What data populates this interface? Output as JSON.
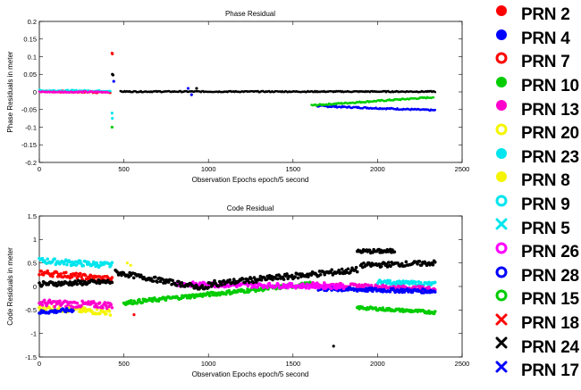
{
  "chart_data": [
    {
      "type": "scatter",
      "title": "Phase Residual",
      "xlabel": "Observation Epochs epoch/5 second",
      "ylabel": "Phase Residuals in meter",
      "xlim": [
        0,
        2500
      ],
      "ylim": [
        -0.2,
        0.2
      ],
      "xticks": [
        "0",
        "500",
        "1000",
        "1500",
        "2000",
        "2500"
      ],
      "yticks": [
        "0.2",
        "0.15",
        "0.1",
        "0.05",
        "0",
        "-0.05",
        "-0.1",
        "-0.15",
        "-0.2"
      ],
      "grid": false,
      "series": [
        {
          "name": "PRN 2",
          "color": "#ff0000",
          "segments": [
            {
              "x0": 0,
              "x1": 420,
              "y0": 0.002,
              "y1": -0.001,
              "jitter": 0.003
            }
          ],
          "points": [
            [
              430,
              0.11
            ],
            [
              432,
              0.108
            ]
          ]
        },
        {
          "name": "PRN 4",
          "color": "#0000ff",
          "segments": [
            {
              "x0": 1640,
              "x1": 2340,
              "y0": -0.04,
              "y1": -0.052,
              "jitter": 0.002
            }
          ],
          "points": [
            [
              880,
              0.01
            ],
            [
              900,
              -0.008
            ],
            [
              440,
              0.03
            ]
          ]
        },
        {
          "name": "PRN 10",
          "color": "#00cc00",
          "segments": [
            {
              "x0": 1610,
              "x1": 2330,
              "y0": -0.038,
              "y1": -0.015,
              "jitter": 0.002
            }
          ],
          "points": [
            [
              430,
              -0.1
            ]
          ]
        },
        {
          "name": "PRN 23",
          "color": "#00e5ee",
          "segments": [
            {
              "x0": 0,
              "x1": 420,
              "y0": 0.004,
              "y1": 0.003,
              "jitter": 0.002
            }
          ],
          "points": [
            [
              430,
              -0.06
            ],
            [
              432,
              -0.075
            ]
          ]
        },
        {
          "name": "PRN 13",
          "color": "#ff00cc",
          "segments": [
            {
              "x0": 0,
              "x1": 410,
              "y0": 0.0,
              "y1": 0.0,
              "jitter": 0.002
            }
          ],
          "points": []
        },
        {
          "name": "PRN 24",
          "color": "#000000",
          "segments": [
            {
              "x0": 480,
              "x1": 2340,
              "y0": 0.001,
              "y1": 0.001,
              "jitter": 0.0015
            }
          ],
          "points": [
            [
              432,
              0.05
            ],
            [
              436,
              0.048
            ],
            [
              930,
              0.01
            ]
          ]
        }
      ]
    },
    {
      "type": "scatter",
      "title": "Code Residual",
      "xlabel": "Observation Epochs epoch/5 second",
      "ylabel": "Code Residuals in meter",
      "xlim": [
        0,
        2500
      ],
      "ylim": [
        -1.5,
        1.5
      ],
      "xticks": [
        "0",
        "500",
        "1000",
        "1500",
        "2000",
        "2500"
      ],
      "yticks": [
        "1.5",
        "1",
        "0.5",
        "0",
        "-0.5",
        "-1",
        "-1.5"
      ],
      "grid": false,
      "series": [
        {
          "name": "PRN 23",
          "color": "#00e5ee",
          "segments": [
            {
              "x0": 0,
              "x1": 430,
              "y0": 0.55,
              "y1": 0.45,
              "jitter": 0.06
            },
            {
              "x0": 2000,
              "x1": 2340,
              "y0": 0.1,
              "y1": 0.05,
              "jitter": 0.04
            }
          ],
          "points": []
        },
        {
          "name": "PRN 2",
          "color": "#ff0000",
          "segments": [
            {
              "x0": 0,
              "x1": 430,
              "y0": 0.3,
              "y1": 0.15,
              "jitter": 0.06
            }
          ],
          "points": [
            [
              560,
              -0.6
            ]
          ]
        },
        {
          "name": "PRN 20",
          "color": "#f5f500",
          "segments": [
            {
              "x0": 0,
              "x1": 420,
              "y0": -0.45,
              "y1": -0.55,
              "jitter": 0.06
            }
          ],
          "points": [
            [
              520,
              0.5
            ],
            [
              540,
              0.45
            ]
          ]
        },
        {
          "name": "PRN 13",
          "color": "#ff00cc",
          "segments": [
            {
              "x0": 0,
              "x1": 430,
              "y0": -0.35,
              "y1": -0.4,
              "jitter": 0.07
            },
            {
              "x0": 1600,
              "x1": 2340,
              "y0": 0.05,
              "y1": -0.05,
              "jitter": 0.04
            }
          ],
          "points": []
        },
        {
          "name": "PRN 4",
          "color": "#0000ff",
          "segments": [
            {
              "x0": 0,
              "x1": 200,
              "y0": -0.55,
              "y1": -0.5,
              "jitter": 0.04
            },
            {
              "x0": 1650,
              "x1": 2340,
              "y0": -0.05,
              "y1": -0.1,
              "jitter": 0.04
            }
          ],
          "points": []
        },
        {
          "name": "PRN 10",
          "color": "#00cc00",
          "segments": [
            {
              "x0": 500,
              "x1": 1600,
              "y0": -0.35,
              "y1": 0.05,
              "jitter": 0.04
            },
            {
              "x0": 1880,
              "x1": 2340,
              "y0": -0.45,
              "y1": -0.55,
              "jitter": 0.03
            }
          ],
          "points": []
        },
        {
          "name": "PRN 26",
          "color": "#ff00ff",
          "segments": [
            {
              "x0": 800,
              "x1": 1800,
              "y0": 0.05,
              "y1": 0.0,
              "jitter": 0.05
            }
          ],
          "points": []
        },
        {
          "name": "PRN 24",
          "color": "#000000",
          "segments": [
            {
              "x0": 0,
              "x1": 430,
              "y0": 0.05,
              "y1": 0.1,
              "jitter": 0.05
            },
            {
              "x0": 450,
              "x1": 1000,
              "y0": 0.3,
              "y1": -0.05,
              "jitter": 0.05
            },
            {
              "x0": 1000,
              "x1": 1880,
              "y0": 0.05,
              "y1": 0.35,
              "jitter": 0.06
            },
            {
              "x0": 1900,
              "x1": 2340,
              "y0": 0.45,
              "y1": 0.5,
              "jitter": 0.05
            },
            {
              "x0": 1880,
              "x1": 2100,
              "y0": 0.75,
              "y1": 0.75,
              "jitter": 0.04
            }
          ],
          "points": [
            [
              1740,
              -1.27
            ]
          ]
        }
      ]
    }
  ],
  "legend": [
    {
      "label": "PRN 2",
      "color": "#ff0000",
      "marker": "dot"
    },
    {
      "label": "PRN 4",
      "color": "#0000ff",
      "marker": "dot"
    },
    {
      "label": "PRN 7",
      "color": "#ff0000",
      "marker": "ring"
    },
    {
      "label": "PRN 10",
      "color": "#00cc00",
      "marker": "dot"
    },
    {
      "label": "PRN 13",
      "color": "#ff00cc",
      "marker": "dot"
    },
    {
      "label": "PRN 20",
      "color": "#f5f500",
      "marker": "ring"
    },
    {
      "label": "PRN 23",
      "color": "#00e5ee",
      "marker": "dot"
    },
    {
      "label": "PRN 8",
      "color": "#f5f500",
      "marker": "dot"
    },
    {
      "label": "PRN 9",
      "color": "#00e5ee",
      "marker": "ring"
    },
    {
      "label": "PRN 5",
      "color": "#00e5ee",
      "marker": "cross"
    },
    {
      "label": "PRN 26",
      "color": "#ff00ff",
      "marker": "ring"
    },
    {
      "label": "PRN 28",
      "color": "#0000ff",
      "marker": "ring"
    },
    {
      "label": "PRN 15",
      "color": "#00cc00",
      "marker": "ring"
    },
    {
      "label": "PRN 18",
      "color": "#ff0000",
      "marker": "cross"
    },
    {
      "label": "PRN 24",
      "color": "#000000",
      "marker": "cross"
    },
    {
      "label": "PRN 17",
      "color": "#0000ff",
      "marker": "cross"
    }
  ]
}
